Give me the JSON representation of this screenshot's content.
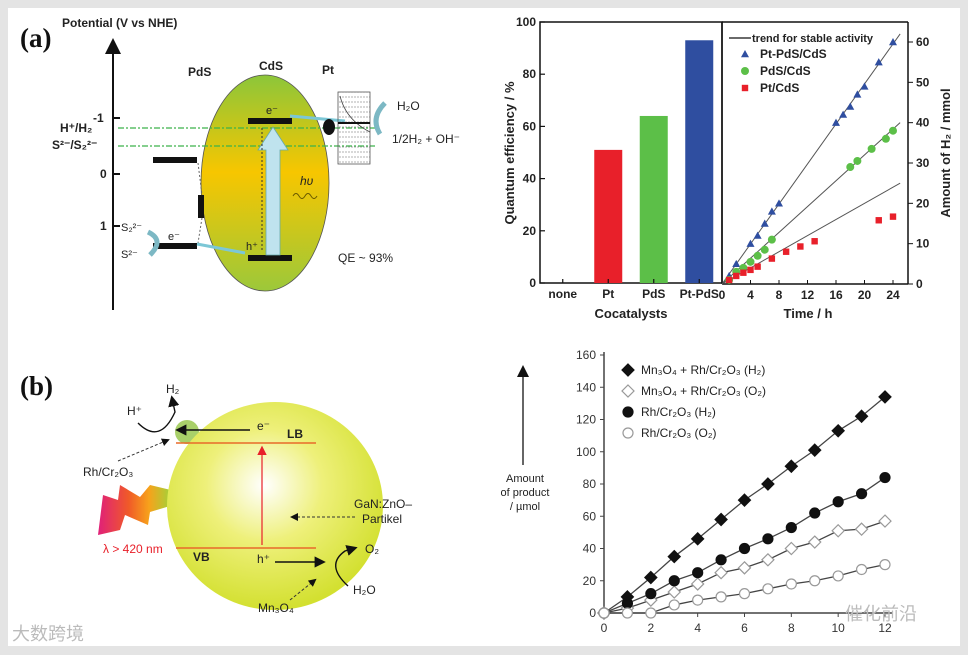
{
  "panel_a": {
    "label": "(a)",
    "diagram": {
      "axis_title": "Potential (V vs NHE)",
      "ticks": [
        "-1",
        "0",
        "1"
      ],
      "levels": [
        "H⁺/H₂",
        "S²⁻/S₂²⁻"
      ],
      "materials": [
        "PdS",
        "CdS",
        "Pt"
      ],
      "electron": "e⁻",
      "hole": "h⁺",
      "photon": "hυ",
      "reactant_water": "H₂O",
      "product_h2": "1/2H₂ + OH⁻",
      "sulfide": "S²⁻",
      "disulfide": "S₂²⁻",
      "qe": "QE ~ 93%"
    }
  },
  "panel_b": {
    "label": "(b)",
    "diagram": {
      "h2": "H₂",
      "hplus": "H⁺",
      "electron": "e⁻",
      "hole": "h⁺",
      "lb": "LB",
      "vb": "VB",
      "rh": "Rh/Cr₂O₃",
      "wavelength": "λ > 420 nm",
      "particle_1": "GaN:ZnO–",
      "particle_2": "Partikel",
      "o2": "O₂",
      "h2o": "H₂O",
      "mn": "Mn₃O₄"
    },
    "ylabel_lines": [
      "Amount",
      "of product",
      "/ µmol"
    ]
  },
  "watermark": {
    "left": "大数跨境",
    "right": "催化前沿"
  },
  "colors": {
    "red": "#e8202a",
    "green": "#5cbf48",
    "blue": "#2f4ea0",
    "yellow": "#f6c800",
    "lime": "#d8e43a"
  },
  "chart_data": [
    {
      "type": "bar",
      "title": "",
      "categories": [
        "none",
        "Pt",
        "PdS",
        "Pt-PdS"
      ],
      "values": [
        0,
        51,
        64,
        93
      ],
      "bar_colors": [
        "#e8202a",
        "#e8202a",
        "#5cbf48",
        "#2f4ea0"
      ],
      "xlabel": "Cocatalysts",
      "ylabel": "Quantum efficiency / %",
      "ylim": [
        0,
        100
      ],
      "yticks": [
        0,
        20,
        40,
        60,
        80,
        100
      ]
    },
    {
      "type": "scatter",
      "xlabel": "Time / h",
      "ylabel": "Amount of H₂ / mmol",
      "xlim": [
        0,
        25
      ],
      "ylim": [
        0,
        63
      ],
      "xticks": [
        0,
        4,
        8,
        12,
        16,
        20,
        24
      ],
      "yticks": [
        0,
        10,
        20,
        30,
        40,
        50,
        60
      ],
      "legend_position": "top-left",
      "trend_label": "trend for stable activity",
      "series": [
        {
          "name": "Pt-PdS/CdS",
          "marker": "triangle",
          "color": "#2f4ea0",
          "trend_slope": 2.5,
          "x": [
            1,
            2,
            4,
            5,
            6,
            7,
            8,
            16,
            17,
            18,
            19,
            20,
            22,
            24
          ],
          "y": [
            2,
            5,
            10,
            12,
            15,
            18,
            20,
            40,
            42,
            44,
            47,
            49,
            55,
            60
          ]
        },
        {
          "name": "PdS/CdS",
          "marker": "circle",
          "color": "#5cbf48",
          "trend_slope": 1.6,
          "x": [
            1,
            2,
            3,
            4,
            5,
            6,
            7,
            18,
            19,
            21,
            23,
            24
          ],
          "y": [
            1,
            3,
            4,
            5.5,
            7,
            8.5,
            11,
            29,
            30.5,
            33.5,
            36,
            38
          ]
        },
        {
          "name": "Pt/CdS",
          "marker": "square",
          "color": "#e8202a",
          "trend_slope": 1.0,
          "x": [
            1,
            2,
            3,
            4,
            5,
            7,
            9,
            11,
            13,
            22,
            24
          ],
          "y": [
            1,
            2,
            2.8,
            3.5,
            4.3,
            6.3,
            8,
            9.3,
            10.6,
            15.8,
            16.7
          ]
        }
      ]
    },
    {
      "type": "line",
      "xlabel": "",
      "ylabel": "Amount of product / µmol",
      "xlim": [
        0,
        12
      ],
      "ylim": [
        0,
        160
      ],
      "xticks": [
        0,
        2,
        4,
        6,
        8,
        10,
        12
      ],
      "yticks": [
        0,
        20,
        40,
        60,
        80,
        100,
        120,
        140,
        160
      ],
      "legend_position": "top-left",
      "series": [
        {
          "name": "Mn₃O₄ + Rh/Cr₂O₃ (H₂)",
          "marker": "diamond",
          "filled": true,
          "x": [
            0,
            1,
            2,
            3,
            4,
            5,
            6,
            7,
            8,
            9,
            10,
            11,
            12
          ],
          "y": [
            0,
            10,
            22,
            35,
            46,
            58,
            70,
            80,
            91,
            101,
            113,
            122,
            134
          ]
        },
        {
          "name": "Mn₃O₄ + Rh/Cr₂O₃ (O₂)",
          "marker": "diamond",
          "filled": false,
          "x": [
            0,
            1,
            2,
            3,
            4,
            5,
            6,
            7,
            8,
            9,
            10,
            11,
            12
          ],
          "y": [
            0,
            3,
            8,
            13,
            18,
            25,
            28,
            33,
            40,
            44,
            51,
            52,
            57
          ]
        },
        {
          "name": "Rh/Cr₂O₃ (H₂)",
          "marker": "circle",
          "filled": true,
          "x": [
            0,
            1,
            2,
            3,
            4,
            5,
            6,
            7,
            8,
            9,
            10,
            11,
            12
          ],
          "y": [
            0,
            6,
            12,
            20,
            25,
            33,
            40,
            46,
            53,
            62,
            69,
            74,
            84
          ]
        },
        {
          "name": "Rh/Cr₂O₃ (O₂)",
          "marker": "circle",
          "filled": false,
          "x": [
            0,
            1,
            2,
            3,
            4,
            5,
            6,
            7,
            8,
            9,
            10,
            11,
            12
          ],
          "y": [
            0,
            0,
            0,
            5,
            8,
            10,
            12,
            15,
            18,
            20,
            23,
            27,
            30
          ]
        }
      ]
    }
  ]
}
